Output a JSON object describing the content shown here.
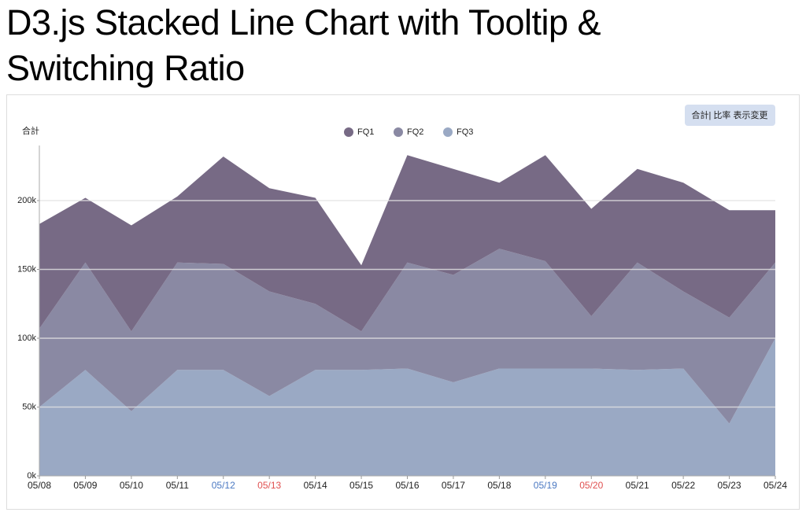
{
  "page_title": "D3.js Stacked Line Chart with Tooltip & Switching Ratio",
  "toggle_button": "合計| 比率 表示変更",
  "chart_data": {
    "type": "stacked-area",
    "y_label": "合計",
    "categories": [
      "05/08",
      "05/09",
      "05/10",
      "05/11",
      "05/12",
      "05/13",
      "05/14",
      "05/15",
      "05/16",
      "05/17",
      "05/18",
      "05/19",
      "05/20",
      "05/21",
      "05/22",
      "05/23",
      "05/24"
    ],
    "category_colors": [
      "#222",
      "#222",
      "#222",
      "#222",
      "#4a78c2",
      "#e05050",
      "#222",
      "#222",
      "#222",
      "#222",
      "#222",
      "#4a78c2",
      "#e05050",
      "#222",
      "#222",
      "#222",
      "#222"
    ],
    "series": [
      {
        "name": "FQ1",
        "color": "#776a85",
        "values": [
          76000,
          47000,
          77000,
          48000,
          78000,
          75000,
          77000,
          48000,
          78000,
          77000,
          48000,
          77000,
          78000,
          68000,
          79000,
          78000,
          38000
        ]
      },
      {
        "name": "FQ2",
        "color": "#8a89a3",
        "values": [
          57000,
          78000,
          58000,
          78000,
          77000,
          76000,
          48000,
          28000,
          77000,
          78000,
          87000,
          78000,
          38000,
          78000,
          56000,
          77000,
          55000
        ]
      },
      {
        "name": "FQ3",
        "color": "#9aa9c4",
        "values": [
          50000,
          77000,
          47000,
          77000,
          77000,
          58000,
          77000,
          77000,
          78000,
          68000,
          78000,
          78000,
          78000,
          77000,
          78000,
          38000,
          100000
        ]
      }
    ],
    "ylim": [
      0,
      240000
    ],
    "yticks": [
      {
        "value": 0,
        "label": "0k"
      },
      {
        "value": 50000,
        "label": "50k"
      },
      {
        "value": 100000,
        "label": "100k"
      },
      {
        "value": 150000,
        "label": "150k"
      },
      {
        "value": 200000,
        "label": "200k"
      }
    ],
    "grid": true
  }
}
